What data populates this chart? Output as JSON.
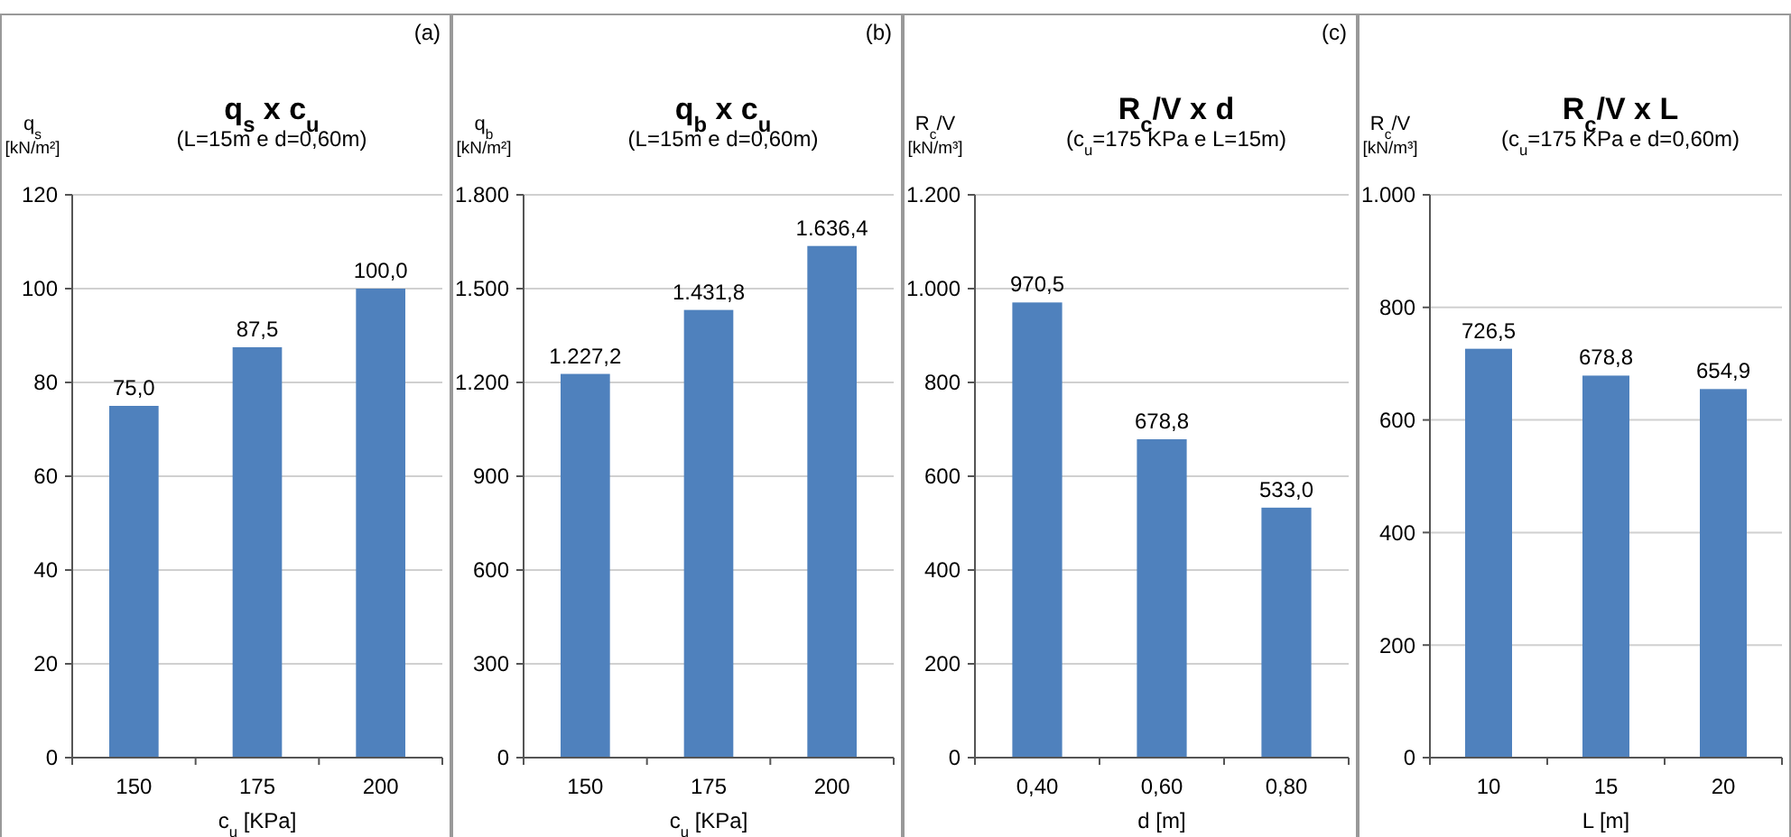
{
  "chart_data": [
    {
      "type": "bar",
      "title": "q$_{s}$ x c$_{u}$",
      "subtitle": "(L=15m e d=0,60m)",
      "ylabel": "q$_{s}$\n[kN/m²]",
      "xlabel": "c$_{u}$ [KPa]",
      "annotations": [
        "(a)"
      ],
      "categories": [
        "150",
        "175",
        "200"
      ],
      "values": [
        75.0,
        87.5,
        100.0
      ],
      "value_labels": [
        "75,0",
        "87,5",
        "100,0"
      ],
      "color": "#4f81bd",
      "ylim": [
        0,
        120
      ],
      "yticks": [
        0,
        20,
        40,
        60,
        80,
        100,
        120
      ],
      "grid": "y"
    },
    {
      "type": "bar",
      "title": "q$_{b}$ x c$_{u}$",
      "subtitle": "(L=15m e d=0,60m)",
      "ylabel": "q$_{b}$\n[kN/m²]",
      "xlabel": "c$_{u}$ [KPa]",
      "annotations": [
        "(b)"
      ],
      "categories": [
        "150",
        "175",
        "200"
      ],
      "values": [
        1227.2,
        1431.8,
        1636.4
      ],
      "value_labels": [
        "1.227,2",
        "1.431,8",
        "1.636,4"
      ],
      "color": "#4f81bd",
      "ylim": [
        0,
        1800
      ],
      "yticks": [
        0,
        300,
        600,
        900,
        {
          "value": 1200,
          "label": "1.200"
        },
        {
          "value": 1500,
          "label": "1.500"
        },
        {
          "value": 1800,
          "label": "1.800"
        }
      ],
      "grid": "y"
    },
    {
      "type": "bar",
      "title": "R$_{c}$/V x d",
      "subtitle": "(c$_{u}$=175 KPa e L=15m)",
      "ylabel": "R$_{c}$/V\n[kN/m³]",
      "xlabel": "d [m]",
      "annotations": [
        "(c)"
      ],
      "categories": [
        "0,40",
        "0,60",
        "0,80"
      ],
      "values": [
        970.5,
        678.8,
        533.0
      ],
      "value_labels": [
        "970,5",
        "678,8",
        "533,0"
      ],
      "color": "#4f81bd",
      "ylim": [
        0,
        1200
      ],
      "yticks": [
        0,
        200,
        400,
        600,
        800,
        {
          "value": 1000,
          "label": "1.000"
        },
        {
          "value": 1200,
          "label": "1.200"
        }
      ],
      "grid": "y"
    },
    {
      "type": "bar",
      "title": "R$_{c}$/V x L",
      "subtitle": "(c$_{u}$=175 KPa e d=0,60m)",
      "ylabel": "R$_{c}$/V\n[kN/m³]",
      "xlabel": "L [m]",
      "categories": [
        "10",
        "15",
        "20"
      ],
      "values": [
        726.5,
        678.8,
        654.9
      ],
      "value_labels": [
        "726,5",
        "678,8",
        "654,9"
      ],
      "color": "#4f81bd",
      "ylim": [
        0,
        1000
      ],
      "yticks": [
        0,
        200,
        400,
        600,
        800,
        {
          "value": 1000,
          "label": "1.000"
        }
      ],
      "grid": "y"
    }
  ]
}
